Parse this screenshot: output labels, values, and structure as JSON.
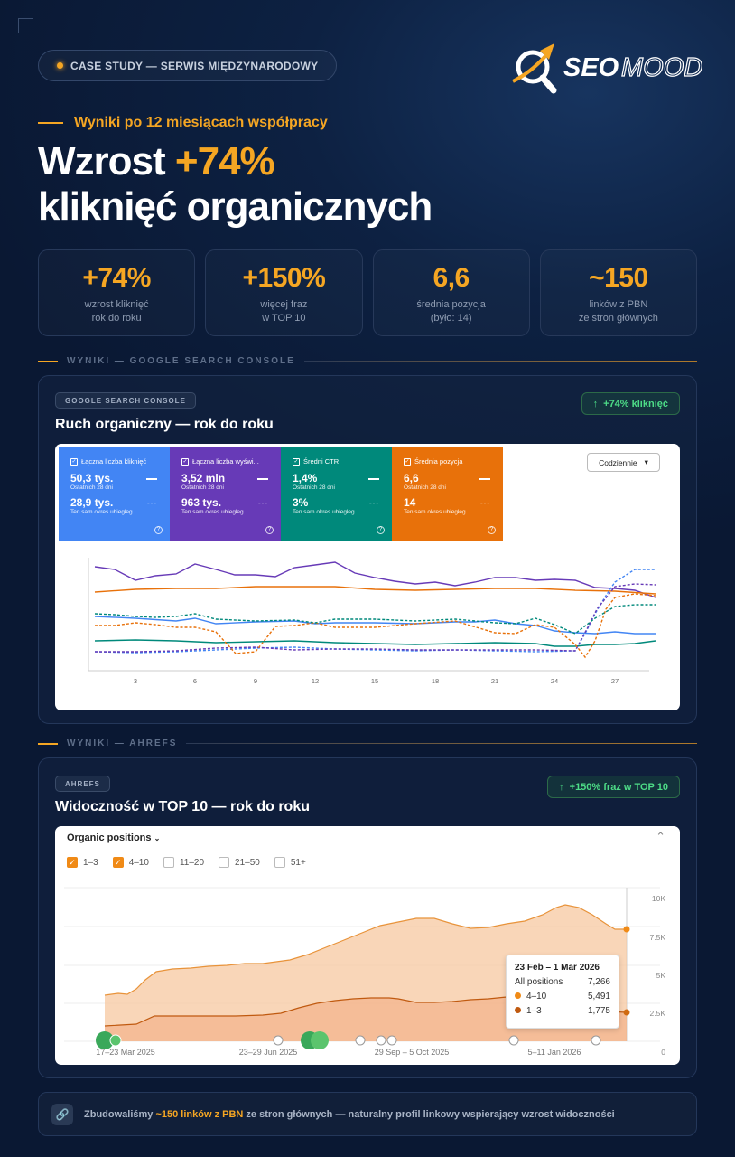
{
  "header": {
    "pill": "CASE STUDY — SERWIS MIĘDZYNARODOWY",
    "logo_seo": "SEO",
    "logo_mood": "MOOD",
    "subhead": "Wyniki po 12 miesiącach współpracy",
    "title_pre": "Wzrost ",
    "title_accent": "+74%",
    "title_line2": "kliknięć organicznych"
  },
  "stats": [
    {
      "value": "+74%",
      "line1": "wzrost kliknięć",
      "line2": "rok do roku"
    },
    {
      "value": "+150%",
      "line1": "więcej fraz",
      "line2": "w TOP 10"
    },
    {
      "value": "6,6",
      "line1": "średnia pozycja",
      "line2": "(było: 14)"
    },
    {
      "value": "~150",
      "line1": "linków z PBN",
      "line2": "ze stron głównych"
    }
  ],
  "gsc": {
    "section": "WYNIKI — GOOGLE SEARCH CONSOLE",
    "tag": "GOOGLE SEARCH CONSOLE",
    "badge": "+74% kliknięć",
    "title": "Ruch organiczny — rok do roku",
    "dropdown": "Codziennie",
    "tiles": [
      {
        "label": "Łączna liczba kliknięć",
        "v1": "50,3 tys.",
        "s1": "Ostatnich 28 dni",
        "v2": "28,9 tys.",
        "s2": "Ten sam okres ubiegłeg...",
        "color": "#4285f4"
      },
      {
        "label": "Łączna liczba wyświ...",
        "v1": "3,52 mln",
        "s1": "Ostatnich 28 dni",
        "v2": "963 tys.",
        "s2": "Ten sam okres ubiegłeg...",
        "color": "#673ab7"
      },
      {
        "label": "Średni CTR",
        "v1": "1,4%",
        "s1": "Ostatnich 28 dni",
        "v2": "3%",
        "s2": "Ten sam okres ubiegłeg...",
        "color": "#00897b"
      },
      {
        "label": "Średnia pozycja",
        "v1": "6,6",
        "s1": "Ostatnich 28 dni",
        "v2": "14",
        "s2": "Ten sam okres ubiegłeg...",
        "color": "#e8710a"
      }
    ],
    "x_ticks": [
      "3",
      "6",
      "9",
      "12",
      "15",
      "18",
      "21",
      "24",
      "27"
    ]
  },
  "ahrefs": {
    "section": "WYNIKI — AHREFS",
    "tag": "AHREFS",
    "badge": "+150% fraz w TOP 10",
    "title": "Widoczność w TOP 10 — rok do roku",
    "panel_title": "Organic positions",
    "filters": [
      {
        "label": "1–3",
        "checked": true
      },
      {
        "label": "4–10",
        "checked": true
      },
      {
        "label": "11–20",
        "checked": false
      },
      {
        "label": "21–50",
        "checked": false
      },
      {
        "label": "51+",
        "checked": false
      }
    ],
    "y_ticks": [
      "10K",
      "7.5K",
      "5K",
      "2.5K",
      "0"
    ],
    "x_ticks": [
      "17–23 Mar 2025",
      "23–29 Jun 2025",
      "29 Sep – 5 Oct 2025",
      "5–11 Jan 2026"
    ],
    "tooltip": {
      "date": "23 Feb – 1 Mar 2026",
      "all_label": "All positions",
      "all_value": "7,266",
      "r1_label": "4–10",
      "r1_value": "5,491",
      "r2_label": "1–3",
      "r2_value": "1,775"
    }
  },
  "footer": {
    "pre": "Zbudowaliśmy ",
    "highlight": "~150 linków z PBN",
    "post": " ze stron głównych — naturalny profil linkowy wspierający wzrost widoczności"
  },
  "colors": {
    "accent": "#f5a623",
    "green": "#4ddc87",
    "ahrefs_orange": "#f08a16"
  }
}
